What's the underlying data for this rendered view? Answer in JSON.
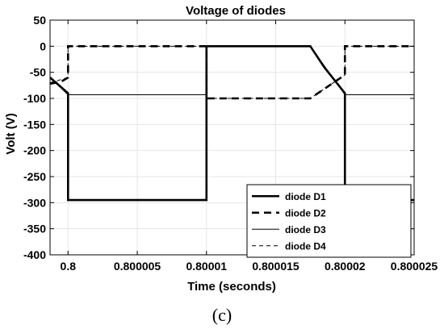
{
  "chart_data": {
    "type": "line",
    "title": "Voltage of diodes",
    "xlabel": "Time (seconds)",
    "ylabel": "Volt (V)",
    "xlim": [
      0.7999987,
      0.800025
    ],
    "ylim": [
      -400,
      50
    ],
    "xticks": [
      0.8,
      0.800005,
      0.80001,
      0.800015,
      0.80002,
      0.800025
    ],
    "xtick_labels": [
      "0.8",
      "0.800005",
      "0.80001",
      "0.800015",
      "0.80002",
      "0.800025"
    ],
    "yticks": [
      50,
      0,
      -50,
      -100,
      -150,
      -200,
      -250,
      -300,
      -350,
      -400
    ],
    "ytick_labels": [
      "50",
      "0",
      "-50",
      "-100",
      "-150",
      "-200",
      "-250",
      "-300",
      "-350",
      "-400"
    ],
    "grid": true,
    "legend_position": "bottom-right",
    "series": [
      {
        "name": "diode D1",
        "style": "solid-thick",
        "color": "#000000",
        "x": [
          0.7999987,
          0.8,
          0.8,
          0.80001,
          0.80001,
          0.8000175,
          0.8000185,
          0.80002,
          0.80002,
          0.800025
        ],
        "y": [
          -60,
          -90,
          -295,
          -295,
          0,
          0,
          -40,
          -90,
          -295,
          -295
        ]
      },
      {
        "name": "diode D2",
        "style": "dashed-thick",
        "color": "#000000",
        "x": [
          0.7999987,
          0.7999995,
          0.8,
          0.8,
          0.80001,
          0.80001,
          0.8000175,
          0.80002,
          0.80002,
          0.800025
        ],
        "y": [
          -72,
          -68,
          -60,
          0,
          0,
          -100,
          -100,
          -55,
          0,
          0
        ]
      },
      {
        "name": "diode D3",
        "style": "solid-thin",
        "color": "#000000",
        "x": [
          0.7999987,
          0.8,
          0.80001,
          0.80001,
          0.8000175,
          0.80002,
          0.800025
        ],
        "y": [
          -60,
          -93,
          -93,
          0,
          0,
          -93,
          -93
        ]
      },
      {
        "name": "diode D4",
        "style": "dashed-thin",
        "color": "#000000",
        "x": [
          0.7999987,
          0.8,
          0.8,
          0.80001,
          0.80001,
          0.8000175,
          0.80002,
          0.80002,
          0.800025
        ],
        "y": [
          -70,
          -60,
          0,
          0,
          -100,
          -100,
          -55,
          0,
          0
        ]
      }
    ]
  },
  "caption": "(c)"
}
